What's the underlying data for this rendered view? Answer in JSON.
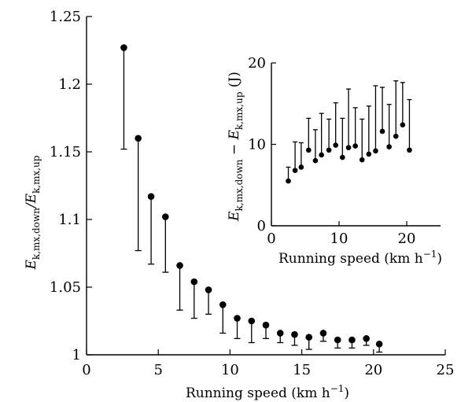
{
  "chart_data": [
    {
      "type": "scatter",
      "title": "",
      "xlabel": {
        "text": "Running speed (km h",
        "sup": "−1",
        "close": ")"
      },
      "ylabel": {
        "main": "E",
        "sub1": "k,mx,down",
        "mid": "/E",
        "sub2": "k,mx,up"
      },
      "xlim": [
        0,
        25
      ],
      "ylim": [
        1,
        1.25
      ],
      "xticks": [
        0,
        5,
        10,
        15,
        20,
        25
      ],
      "yticks": [
        1,
        1.05,
        1.1,
        1.15,
        1.2,
        1.25
      ],
      "xtick_labels": [
        "0",
        "5",
        "10",
        "15",
        "20",
        "25"
      ],
      "ytick_labels": [
        "1",
        "1.05",
        "1.1",
        "1.15",
        "1.2",
        "1.25"
      ],
      "grid": false,
      "error_direction": "down",
      "points": [
        {
          "x": 2.6,
          "y": 1.227,
          "err_low": 1.152
        },
        {
          "x": 3.6,
          "y": 1.16,
          "err_low": 1.077
        },
        {
          "x": 4.5,
          "y": 1.117,
          "err_low": 1.067
        },
        {
          "x": 5.5,
          "y": 1.102,
          "err_low": 1.061
        },
        {
          "x": 6.5,
          "y": 1.066,
          "err_low": 1.033
        },
        {
          "x": 7.5,
          "y": 1.054,
          "err_low": 1.027
        },
        {
          "x": 8.5,
          "y": 1.048,
          "err_low": 1.03
        },
        {
          "x": 9.5,
          "y": 1.037,
          "err_low": 1.016
        },
        {
          "x": 10.5,
          "y": 1.027,
          "err_low": 1.012
        },
        {
          "x": 11.5,
          "y": 1.025,
          "err_low": 1.009
        },
        {
          "x": 12.5,
          "y": 1.022,
          "err_low": 1.012
        },
        {
          "x": 13.5,
          "y": 1.016,
          "err_low": 1.009
        },
        {
          "x": 14.5,
          "y": 1.015,
          "err_low": 1.007
        },
        {
          "x": 15.5,
          "y": 1.013,
          "err_low": 1.004
        },
        {
          "x": 16.5,
          "y": 1.016,
          "err_low": 1.01
        },
        {
          "x": 17.5,
          "y": 1.011,
          "err_low": 1.005
        },
        {
          "x": 18.5,
          "y": 1.011,
          "err_low": 1.005
        },
        {
          "x": 19.5,
          "y": 1.012,
          "err_low": 1.007
        },
        {
          "x": 20.4,
          "y": 1.008,
          "err_low": 1.002
        }
      ]
    },
    {
      "type": "scatter",
      "title": "",
      "xlabel": {
        "text": "Running speed (km h",
        "sup": "−1",
        "close": ")"
      },
      "ylabel": {
        "main": "E",
        "sub1": "k,mx,down",
        "mid": " − E",
        "sub2": "k,mx,up",
        "unit": " (J)"
      },
      "xlim": [
        0,
        25
      ],
      "ylim": [
        0,
        20
      ],
      "xticks": [
        0,
        10,
        20
      ],
      "yticks": [
        0,
        10,
        20
      ],
      "xtick_labels": [
        "0",
        "10",
        "20"
      ],
      "ytick_labels": [
        "0",
        "10",
        "20"
      ],
      "grid": false,
      "error_direction": "up",
      "points": [
        {
          "x": 2.5,
          "y": 5.5,
          "err_high": 7.2
        },
        {
          "x": 3.5,
          "y": 6.8,
          "err_high": 10.3
        },
        {
          "x": 4.4,
          "y": 7.2,
          "err_high": 10.2
        },
        {
          "x": 5.5,
          "y": 9.3,
          "err_high": 13.2
        },
        {
          "x": 6.5,
          "y": 8.0,
          "err_high": 11.8
        },
        {
          "x": 7.4,
          "y": 8.7,
          "err_high": 13.8
        },
        {
          "x": 8.5,
          "y": 9.3,
          "err_high": 13.1
        },
        {
          "x": 9.5,
          "y": 9.9,
          "err_high": 15.1
        },
        {
          "x": 10.5,
          "y": 8.4,
          "err_high": 13.2
        },
        {
          "x": 11.4,
          "y": 9.6,
          "err_high": 16.8
        },
        {
          "x": 12.4,
          "y": 9.8,
          "err_high": 14.5
        },
        {
          "x": 13.4,
          "y": 8.1,
          "err_high": 13.1
        },
        {
          "x": 14.4,
          "y": 8.8,
          "err_high": 14.7
        },
        {
          "x": 15.4,
          "y": 9.2,
          "err_high": 17.2
        },
        {
          "x": 16.4,
          "y": 11.6,
          "err_high": 17.0
        },
        {
          "x": 17.4,
          "y": 9.7,
          "err_high": 14.9
        },
        {
          "x": 18.4,
          "y": 11.0,
          "err_high": 17.8
        },
        {
          "x": 19.4,
          "y": 12.4,
          "err_high": 17.6
        },
        {
          "x": 20.4,
          "y": 9.3,
          "err_high": 15.5
        }
      ]
    }
  ]
}
